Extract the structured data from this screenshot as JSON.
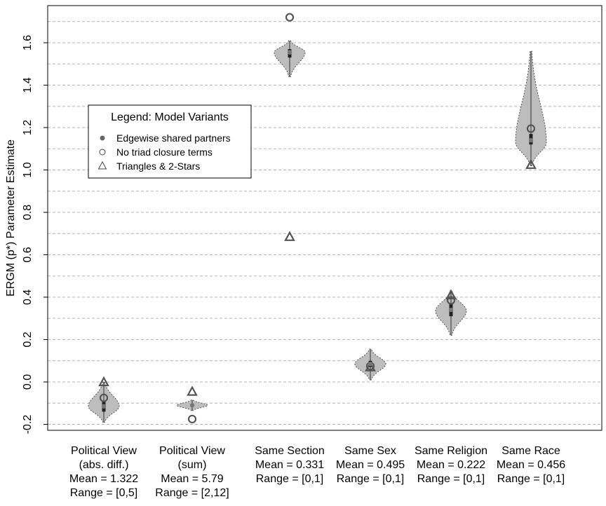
{
  "chart_data": {
    "type": "violin",
    "ylabel": "ERGM (p*) Parameter Estimate",
    "ylim": [
      -0.22,
      1.78
    ],
    "yticks": [
      "-0.2",
      "0.0",
      "0.2",
      "0.4",
      "0.6",
      "0.8",
      "1.0",
      "1.2",
      "1.4",
      "1.6"
    ],
    "ytick_values": [
      -0.2,
      0.0,
      0.2,
      0.4,
      0.6,
      0.8,
      1.0,
      1.2,
      1.4,
      1.6
    ],
    "grid": "horizontal dashed",
    "legend": {
      "title": "Legend: Model Variants",
      "placement": "upper-left",
      "entries": [
        {
          "marker": "filled-circle",
          "label": "Edgewise shared partners"
        },
        {
          "marker": "open-circle",
          "label": "No triad closure terms"
        },
        {
          "marker": "open-triangle",
          "label": "Triangles & 2-Stars"
        }
      ]
    },
    "categories": [
      {
        "label_lines": [
          "Political View",
          "(abs. diff.)",
          "Mean = 1.322",
          "Range = [0,5]"
        ],
        "violin": {
          "min": -0.19,
          "max": 0.0,
          "mode": -0.115,
          "median": -0.115,
          "q1": -0.14,
          "q3": -0.09
        },
        "edgewise_shared_partners": -0.115,
        "no_triad_closure": -0.075,
        "triangles_2stars": 0.0
      },
      {
        "label_lines": [
          "Political View",
          "(sum)",
          "Mean = 5.79",
          "Range = [2,12]"
        ],
        "violin": {
          "min": -0.135,
          "max": -0.085,
          "mode": -0.11,
          "median": -0.11,
          "q1": -0.115,
          "q3": -0.105
        },
        "edgewise_shared_partners": -0.11,
        "no_triad_closure": -0.175,
        "triangles_2stars": -0.045
      },
      {
        "label_lines": [
          "Same Section",
          "Mean = 0.331",
          "Range = [0,1]"
        ],
        "violin": {
          "min": 1.44,
          "max": 1.61,
          "mode": 1.555,
          "median": 1.55,
          "q1": 1.53,
          "q3": 1.57
        },
        "edgewise_shared_partners": 1.555,
        "no_triad_closure": 1.72,
        "triangles_2stars": 0.685
      },
      {
        "label_lines": [
          "Same Sex",
          "Mean = 0.495",
          "Range = [0,1]"
        ],
        "violin": {
          "min": 0.01,
          "max": 0.155,
          "mode": 0.085,
          "median": 0.085,
          "q1": 0.07,
          "q3": 0.1
        },
        "edgewise_shared_partners": 0.085,
        "no_triad_closure": 0.075,
        "triangles_2stars": 0.07
      },
      {
        "label_lines": [
          "Same Religion",
          "Mean = 0.222",
          "Range = [0,1]"
        ],
        "violin": {
          "min": 0.22,
          "max": 0.43,
          "mode": 0.335,
          "median": 0.34,
          "q1": 0.31,
          "q3": 0.37
        },
        "edgewise_shared_partners": 0.34,
        "no_triad_closure": 0.385,
        "triangles_2stars": 0.41
      },
      {
        "label_lines": [
          "Same Race",
          "Mean = 0.456",
          "Range = [0,1]"
        ],
        "violin": {
          "min": 1.02,
          "max": 1.56,
          "mode": 1.13,
          "median": 1.14,
          "q1": 1.12,
          "q3": 1.17
        },
        "edgewise_shared_partners": 1.14,
        "no_triad_closure": 1.195,
        "triangles_2stars": 1.025
      }
    ]
  }
}
